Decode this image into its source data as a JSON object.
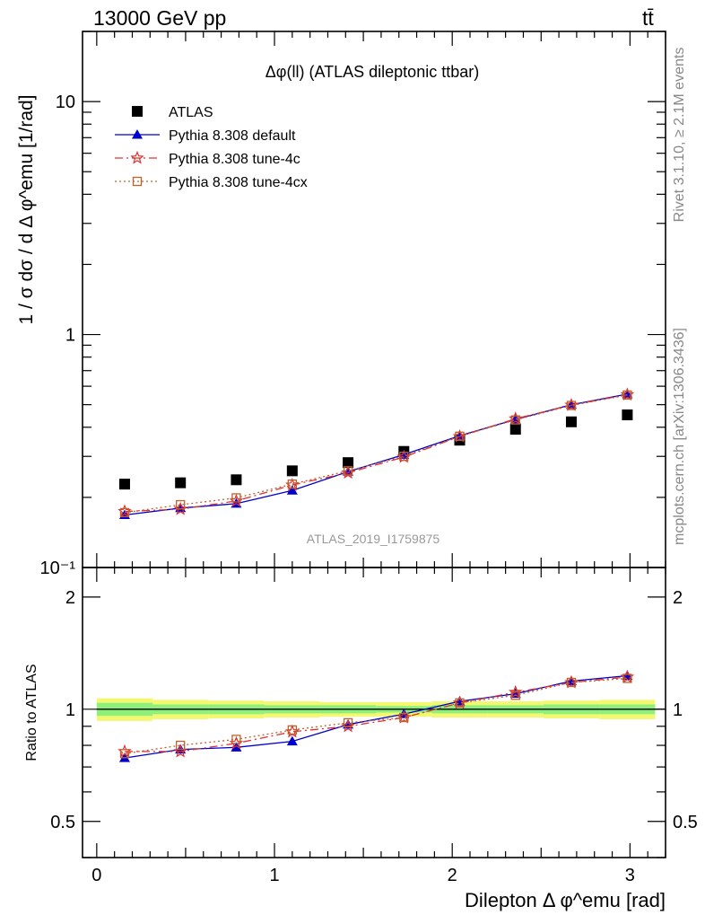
{
  "header": {
    "energy_label": "13000 GeV pp",
    "process_label": "tt̄",
    "plot_title": "Δφ(ll) (ATLAS dileptonic ttbar)",
    "side_label_rivet": "Rivet 3.1.10, ≥ 2.1M events",
    "side_label_source": "mcplots.cern.ch [arXiv:1306.3436]",
    "analysis_watermark": "ATLAS_2019_I1759875"
  },
  "chart_data": [
    {
      "type": "scatter",
      "panel": "main",
      "ylabel": "1 / σ  dσ / d Δ φ^emu [1/rad]",
      "yscale": "log",
      "ylim": [
        0.1,
        20
      ],
      "xlim": [
        -0.08,
        3.2
      ],
      "ytick_labels": [
        "10⁻¹",
        "1",
        "10"
      ],
      "legend_position": "top-left",
      "x": [
        0.157,
        0.471,
        0.785,
        1.1,
        1.414,
        1.728,
        2.042,
        2.356,
        2.67,
        2.985
      ],
      "series": [
        {
          "name": "ATLAS",
          "color": "#000000",
          "marker": "square",
          "values": [
            0.228,
            0.231,
            0.238,
            0.26,
            0.282,
            0.315,
            0.352,
            0.392,
            0.422,
            0.452
          ]
        },
        {
          "name": "Pythia 8.308 default",
          "color": "#0000cc",
          "marker": "triangle",
          "linestyle": "solid",
          "values": [
            0.168,
            0.18,
            0.188,
            0.214,
            0.258,
            0.305,
            0.368,
            0.432,
            0.5,
            0.555
          ]
        },
        {
          "name": "Pythia 8.308 tune-4c",
          "color": "#e03030",
          "marker": "star",
          "linestyle": "dashdot",
          "values": [
            0.174,
            0.178,
            0.193,
            0.226,
            0.255,
            0.298,
            0.365,
            0.435,
            0.498,
            0.552
          ]
        },
        {
          "name": "Pythia 8.308 tune-4cx",
          "color": "#c0602a",
          "marker": "open-square",
          "linestyle": "dotted",
          "values": [
            0.172,
            0.186,
            0.199,
            0.228,
            0.26,
            0.3,
            0.366,
            0.43,
            0.496,
            0.55
          ]
        }
      ]
    },
    {
      "type": "line",
      "panel": "ratio",
      "ylabel": "Ratio to ATLAS",
      "xlabel": "Dilepton Δ φ^emu [rad]",
      "xlim": [
        -0.08,
        3.2
      ],
      "ylim": [
        0.4,
        2.4
      ],
      "yscale": "log",
      "ytick_labels": [
        "0.5",
        "1",
        "2"
      ],
      "xtick_labels": [
        "0",
        "1",
        "2",
        "3"
      ],
      "x": [
        0.157,
        0.471,
        0.785,
        1.1,
        1.414,
        1.728,
        2.042,
        2.356,
        2.67,
        2.985
      ],
      "band": {
        "color_inner": "#8cf07a",
        "color_outer": "#f4f770",
        "inner": [
          0.96,
          0.97,
          0.97,
          0.975,
          0.975,
          0.98,
          0.975,
          0.975,
          0.97,
          0.97
        ],
        "outer": [
          0.93,
          0.94,
          0.945,
          0.95,
          0.955,
          0.955,
          0.95,
          0.95,
          0.945,
          0.94
        ]
      },
      "series": [
        {
          "name": "Pythia 8.308 default",
          "color": "#0000cc",
          "marker": "triangle",
          "linestyle": "solid",
          "values": [
            0.74,
            0.78,
            0.79,
            0.82,
            0.91,
            0.97,
            1.05,
            1.1,
            1.19,
            1.23
          ]
        },
        {
          "name": "Pythia 8.308 tune-4c",
          "color": "#e03030",
          "marker": "star",
          "linestyle": "dashdot",
          "values": [
            0.77,
            0.77,
            0.81,
            0.87,
            0.9,
            0.95,
            1.04,
            1.11,
            1.18,
            1.22
          ]
        },
        {
          "name": "Pythia 8.308 tune-4cx",
          "color": "#c0602a",
          "marker": "open-square",
          "linestyle": "dotted",
          "values": [
            0.76,
            0.8,
            0.83,
            0.88,
            0.92,
            0.95,
            1.04,
            1.09,
            1.18,
            1.21
          ]
        }
      ]
    }
  ]
}
